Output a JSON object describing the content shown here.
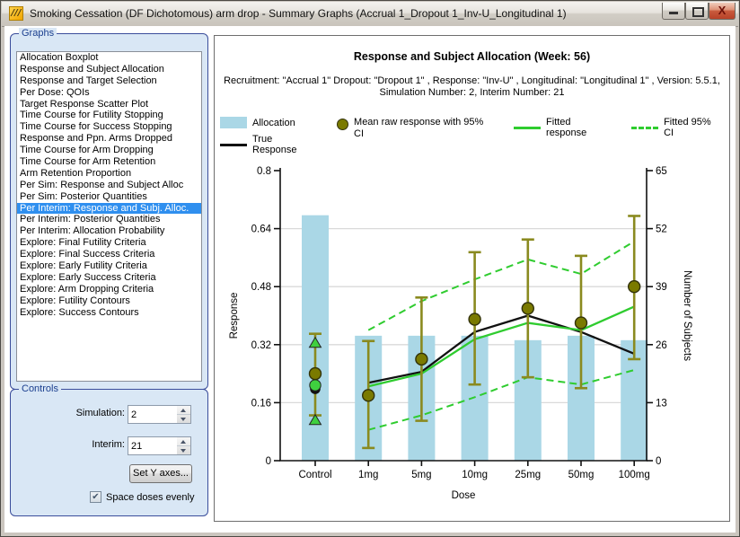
{
  "window": {
    "title": "Smoking Cessation (DF Dichotomous) arm drop - Summary Graphs (Accrual 1_Dropout 1_Inv-U_Longitudinal 1)",
    "app_icon_glyph": "///",
    "close_glyph": "X"
  },
  "sidebar": {
    "label": "Graphs",
    "selected_index": 13,
    "items": [
      "Allocation Boxplot",
      "Response and Subject Allocation",
      "Response and Target Selection",
      "Per Dose: QOIs",
      "Target Response Scatter Plot",
      "Time Course for Futility Stopping",
      "Time Course for Success Stopping",
      "Response and Ppn. Arms Dropped",
      "Time Course for Arm Dropping",
      "Time Course for Arm Retention",
      "Arm Retention Proportion",
      "Per Sim: Response and Subject Alloc",
      "Per Sim: Posterior Quantities",
      "Per Interim: Response and Subj. Alloc.",
      "Per Interim: Posterior Quantities",
      "Per Interim: Allocation Probability",
      "Explore: Final Futility Criteria",
      "Explore: Final Success Criteria",
      "Explore: Early Futility Criteria",
      "Explore: Early Success Criteria",
      "Explore: Arm Dropping Criteria",
      "Explore: Futility Contours",
      "Explore: Success Contours"
    ]
  },
  "controls": {
    "label": "Controls",
    "simulation_label": "Simulation:",
    "simulation_value": "2",
    "interim_label": "Interim:",
    "interim_value": "21",
    "set_y_axes_label": "Set Y axes...",
    "checkbox_label": "Space doses evenly",
    "checkbox_checked": true,
    "check_glyph": "✔"
  },
  "legend": {
    "allocation": "Allocation",
    "true_response": "True Response",
    "raw_response": "Mean raw response with 95% CI",
    "fitted_response": "Fitted response",
    "fitted_ci": "Fitted 95% CI"
  },
  "chart_data": {
    "type": "combo (bar + line + scatter with error bars)",
    "title": "Response and Subject Allocation (Week: 56)",
    "subtitle": "Recruitment: \"Accrual 1\" Dropout: \"Dropout 1\" , Response: \"Inv-U\" , Longitudinal: \"Longitudinal 1\" , Version: 5.5.1, Simulation Number: 2, Interim Number: 21",
    "categories": [
      "Control",
      "1mg",
      "5mg",
      "10mg",
      "25mg",
      "50mg",
      "100mg"
    ],
    "xlabel": "Dose",
    "y_left": {
      "label": "Response",
      "min": 0,
      "max": 0.8,
      "ticks": [
        "0",
        "0.16",
        "0.32",
        "0.48",
        "0.64",
        "0.8"
      ]
    },
    "y_right": {
      "label": "Number of Subjects",
      "min": 0,
      "max": 65,
      "ticks": [
        "0",
        "13",
        "26",
        "39",
        "52",
        "65"
      ]
    },
    "grid": "horizontal gridlines at shared ticks 0.16/13, 0.32/26, 0.48/39, 0.64/52",
    "legend_position": "top, horizontal",
    "series": [
      {
        "name": "Allocation",
        "type": "bar",
        "axis": "right",
        "color": "#aad7e6",
        "values": [
          55,
          28,
          28,
          28,
          27,
          28,
          27
        ]
      },
      {
        "name": "Mean raw response with 95% CI",
        "type": "scatter+errorbar",
        "axis": "left",
        "color": "#7a7a00",
        "values": [
          0.24,
          0.18,
          0.28,
          0.39,
          0.42,
          0.38,
          0.48
        ],
        "ci_low": [
          0.125,
          0.035,
          0.11,
          0.21,
          0.23,
          0.2,
          0.28
        ],
        "ci_high": [
          0.35,
          0.33,
          0.45,
          0.575,
          0.61,
          0.565,
          0.675
        ]
      },
      {
        "name": "True Response",
        "type": "line",
        "axis": "left",
        "color": "#111111",
        "note": "control shown as detached dot, line spans 1mg-100mg",
        "values": [
          0.198,
          0.215,
          0.245,
          0.355,
          0.4,
          0.355,
          0.295
        ]
      },
      {
        "name": "Fitted response",
        "type": "line",
        "axis": "left",
        "color": "#2fcc2f",
        "note": "control shown as detached green circle, line spans 1mg-100mg",
        "values": [
          0.208,
          0.205,
          0.24,
          0.335,
          0.38,
          0.36,
          0.425
        ]
      },
      {
        "name": "Fitted 95% CI",
        "type": "line-dashed-band",
        "axis": "left",
        "color": "#2fcc2f",
        "note": "control shown as green triangles, dashed lines span 1mg-100mg",
        "upper": [
          0.325,
          0.36,
          0.44,
          0.5,
          0.555,
          0.515,
          0.605
        ],
        "lower": [
          0.112,
          0.085,
          0.125,
          0.175,
          0.23,
          0.21,
          0.25
        ]
      }
    ]
  }
}
